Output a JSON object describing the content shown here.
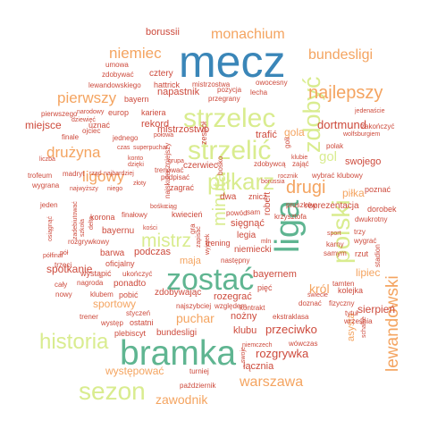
{
  "colors": {
    "orange": "#f4a460",
    "red": "#cd4a3c",
    "green": "#bcd97e",
    "teal": "#5fb591",
    "blue": "#3a86b8",
    "lightgreen": "#d9ec8f",
    "salmon": "#f08060"
  },
  "words": [
    {
      "text": "mecz",
      "color": "blue",
      "vertical": false
    },
    {
      "text": "bramka",
      "color": "teal",
      "vertical": false
    },
    {
      "text": "liga",
      "color": "teal",
      "vertical": true
    },
    {
      "text": "zostać",
      "color": "teal",
      "vertical": false
    },
    {
      "text": "strzelec",
      "color": "lightgreen",
      "vertical": false
    },
    {
      "text": "strzelić",
      "color": "lightgreen",
      "vertical": false
    },
    {
      "text": "polski",
      "color": "lightgreen",
      "vertical": true
    },
    {
      "text": "zdobyć",
      "color": "lightgreen",
      "vertical": true
    },
    {
      "text": "piłkarz",
      "color": "lightgreen",
      "vertical": false
    },
    {
      "text": "sezon",
      "color": "lightgreen",
      "vertical": false
    },
    {
      "text": "historia",
      "color": "lightgreen",
      "vertical": false
    },
    {
      "text": "mistrz",
      "color": "lightgreen",
      "vertical": false
    },
    {
      "text": "minuta",
      "color": "lightgreen",
      "vertical": true
    },
    {
      "text": "gol",
      "color": "lightgreen",
      "vertical": false
    },
    {
      "text": "lewandowski",
      "color": "orange",
      "vertical": true
    },
    {
      "text": "najlepszy",
      "color": "orange",
      "vertical": false
    },
    {
      "text": "drugi",
      "color": "orange",
      "vertical": false
    },
    {
      "text": "bundesligi",
      "color": "orange",
      "vertical": false
    },
    {
      "text": "monachium",
      "color": "orange",
      "vertical": false
    },
    {
      "text": "niemiec",
      "color": "orange",
      "vertical": false
    },
    {
      "text": "pierwszy",
      "color": "orange",
      "vertical": false
    },
    {
      "text": "ligowy",
      "color": "orange",
      "vertical": false
    },
    {
      "text": "drużyna",
      "color": "orange",
      "vertical": false
    },
    {
      "text": "warszawa",
      "color": "orange",
      "vertical": false
    },
    {
      "text": "zawodnik",
      "color": "orange",
      "vertical": false
    },
    {
      "text": "puchar",
      "color": "orange",
      "vertical": false
    },
    {
      "text": "król",
      "color": "orange",
      "vertical": false
    },
    {
      "text": "lipiec",
      "color": "orange",
      "vertical": false
    },
    {
      "text": "piłka",
      "color": "orange",
      "vertical": false
    },
    {
      "text": "sportowy",
      "color": "orange",
      "vertical": false
    },
    {
      "text": "występować",
      "color": "orange",
      "vertical": false
    },
    {
      "text": "maja",
      "color": "orange",
      "vertical": false
    },
    {
      "text": "gola",
      "color": "orange",
      "vertical": false
    },
    {
      "text": "asysta",
      "color": "orange",
      "vertical": true
    },
    {
      "text": "spotkanie",
      "color": "red",
      "vertical": false
    },
    {
      "text": "mistrzostwo",
      "color": "red",
      "vertical": false
    },
    {
      "text": "rozgrywka",
      "color": "red",
      "vertical": false
    },
    {
      "text": "dortmund",
      "color": "red",
      "vertical": false
    },
    {
      "text": "przeciwko",
      "color": "red",
      "vertical": false
    },
    {
      "text": "borussii",
      "color": "red",
      "vertical": false
    },
    {
      "text": "napastnik",
      "color": "red",
      "vertical": false
    },
    {
      "text": "miejsce",
      "color": "red",
      "vertical": false
    },
    {
      "text": "podczas",
      "color": "red",
      "vertical": false
    },
    {
      "text": "łącznia",
      "color": "red",
      "vertical": false
    },
    {
      "text": "klubu",
      "color": "red",
      "vertical": false
    },
    {
      "text": "trafić",
      "color": "red",
      "vertical": false
    },
    {
      "text": "swojego",
      "color": "red",
      "vertical": false
    },
    {
      "text": "bayernem",
      "color": "red",
      "vertical": false
    },
    {
      "text": "rekord",
      "color": "red",
      "vertical": false
    },
    {
      "text": "sierpień",
      "color": "red",
      "vertical": false
    },
    {
      "text": "kolejka",
      "color": "red",
      "vertical": false
    },
    {
      "text": "reprezentacja",
      "color": "red",
      "vertical": false
    },
    {
      "text": "zdobywając",
      "color": "red",
      "vertical": false
    },
    {
      "text": "ponadto",
      "color": "red",
      "vertical": false
    },
    {
      "text": "bayernu",
      "color": "red",
      "vertical": false
    },
    {
      "text": "barwa",
      "color": "red",
      "vertical": false
    },
    {
      "text": "oficjalny",
      "color": "red",
      "vertical": false
    },
    {
      "text": "pięć",
      "color": "red",
      "vertical": false
    },
    {
      "text": "bundesligi",
      "color": "red",
      "vertical": false
    },
    {
      "text": "cztery",
      "color": "red",
      "vertical": false
    },
    {
      "text": "bayern",
      "color": "red",
      "vertical": false
    },
    {
      "text": "hattrick",
      "color": "red",
      "vertical": false
    },
    {
      "text": "europ",
      "color": "red",
      "vertical": false
    },
    {
      "text": "kariera",
      "color": "red",
      "vertical": false
    },
    {
      "text": "uznać",
      "color": "red",
      "vertical": false
    },
    {
      "text": "jednego",
      "color": "red",
      "vertical": false
    },
    {
      "text": "finale",
      "color": "red",
      "vertical": false
    },
    {
      "text": "korona",
      "color": "red",
      "vertical": false
    },
    {
      "text": "czerwiec",
      "color": "red",
      "vertical": false
    },
    {
      "text": "legia",
      "color": "red",
      "vertical": false
    },
    {
      "text": "sięgnąć",
      "color": "red",
      "vertical": false
    },
    {
      "text": "niemiecki",
      "color": "red",
      "vertical": false
    },
    {
      "text": "robert",
      "color": "red",
      "vertical": true
    },
    {
      "text": "zagrać",
      "color": "red",
      "vertical": false
    },
    {
      "text": "kwiecień",
      "color": "red",
      "vertical": false
    },
    {
      "text": "trening",
      "color": "red",
      "vertical": false
    },
    {
      "text": "następny",
      "color": "red",
      "vertical": false
    },
    {
      "text": "rozegrać",
      "color": "red",
      "vertical": false
    },
    {
      "text": "nożny",
      "color": "red",
      "vertical": false
    },
    {
      "text": "kontrakt",
      "color": "red",
      "vertical": false
    },
    {
      "text": "ekstraklasa",
      "color": "red",
      "vertical": false
    },
    {
      "text": "wówczas",
      "color": "red",
      "vertical": false
    },
    {
      "text": "niemczech",
      "color": "red",
      "vertical": false
    },
    {
      "text": "turniej",
      "color": "red",
      "vertical": false
    },
    {
      "text": "październik",
      "color": "red",
      "vertical": false
    },
    {
      "text": "plebiscyt",
      "color": "red",
      "vertical": false
    },
    {
      "text": "ostatni",
      "color": "red",
      "vertical": false
    },
    {
      "text": "występ",
      "color": "red",
      "vertical": false
    },
    {
      "text": "trener",
      "color": "red",
      "vertical": false
    },
    {
      "text": "styczeń",
      "color": "red",
      "vertical": false
    },
    {
      "text": "pobić",
      "color": "red",
      "vertical": false
    },
    {
      "text": "klubem",
      "color": "red",
      "vertical": false
    },
    {
      "text": "nagroda",
      "color": "red",
      "vertical": false
    },
    {
      "text": "nowy",
      "color": "red",
      "vertical": false
    },
    {
      "text": "cały",
      "color": "red",
      "vertical": false
    },
    {
      "text": "wystąpić",
      "color": "red",
      "vertical": false
    },
    {
      "text": "ukończyć",
      "color": "red",
      "vertical": false
    },
    {
      "text": "rozgrywkowy",
      "color": "red",
      "vertical": false
    },
    {
      "text": "finałowy",
      "color": "red",
      "vertical": false
    },
    {
      "text": "jeden",
      "color": "red",
      "vertical": false
    },
    {
      "text": "wygrana",
      "color": "red",
      "vertical": false
    },
    {
      "text": "trofeum",
      "color": "red",
      "vertical": false
    },
    {
      "text": "madryt",
      "color": "red",
      "vertical": false
    },
    {
      "text": "liczba",
      "color": "red",
      "vertical": false
    },
    {
      "text": "pierwszego",
      "color": "red",
      "vertical": false
    },
    {
      "text": "narodowy",
      "color": "red",
      "vertical": false
    },
    {
      "text": "dziewięć",
      "color": "red",
      "vertical": false
    },
    {
      "text": "ojciec",
      "color": "red",
      "vertical": false
    },
    {
      "text": "umowa",
      "color": "red",
      "vertical": false
    },
    {
      "text": "zdobywać",
      "color": "red",
      "vertical": false
    },
    {
      "text": "lewandowskiego",
      "color": "red",
      "vertical": false
    },
    {
      "text": "mistrzostwa",
      "color": "red",
      "vertical": false
    },
    {
      "text": "pozycja",
      "color": "red",
      "vertical": false
    },
    {
      "text": "przegrany",
      "color": "red",
      "vertical": false
    },
    {
      "text": "lecha",
      "color": "red",
      "vertical": false
    },
    {
      "text": "owocesny",
      "color": "red",
      "vertical": false
    },
    {
      "text": "połowa",
      "color": "red",
      "vertical": false
    },
    {
      "text": "czas",
      "color": "red",
      "vertical": false
    },
    {
      "text": "superpuchar",
      "color": "red",
      "vertical": false
    },
    {
      "text": "dzięki",
      "color": "red",
      "vertical": false
    },
    {
      "text": "konto",
      "color": "red",
      "vertical": false
    },
    {
      "text": "rząd",
      "color": "red",
      "vertical": false
    },
    {
      "text": "najbardziej",
      "color": "red",
      "vertical": false
    },
    {
      "text": "złoty",
      "color": "red",
      "vertical": false
    },
    {
      "text": "niego",
      "color": "red",
      "vertical": false
    },
    {
      "text": "najwyższy",
      "color": "red",
      "vertical": false
    },
    {
      "text": "trenować",
      "color": "red",
      "vertical": false
    },
    {
      "text": "grupa",
      "color": "red",
      "vertical": false
    },
    {
      "text": "podpisać",
      "color": "red",
      "vertical": false
    },
    {
      "text": "dwa",
      "color": "red",
      "vertical": false
    },
    {
      "text": "znicz",
      "color": "red",
      "vertical": false
    },
    {
      "text": "powód",
      "color": "red",
      "vertical": false
    },
    {
      "text": "sam",
      "color": "red",
      "vertical": false
    },
    {
      "text": "krzysztofa",
      "color": "red",
      "vertical": false
    },
    {
      "text": "borussia",
      "color": "red",
      "vertical": false
    },
    {
      "text": "rocznik",
      "color": "red",
      "vertical": false
    },
    {
      "text": "zdobywcą",
      "color": "red",
      "vertical": false
    },
    {
      "text": "zająć",
      "color": "red",
      "vertical": false
    },
    {
      "text": "klubie",
      "color": "red",
      "vertical": false
    },
    {
      "text": "polak",
      "color": "red",
      "vertical": false
    },
    {
      "text": "zakończyć",
      "color": "red",
      "vertical": false
    },
    {
      "text": "wybrać",
      "color": "red",
      "vertical": false
    },
    {
      "text": "klubowy",
      "color": "red",
      "vertical": false
    },
    {
      "text": "poznać",
      "color": "red",
      "vertical": false
    },
    {
      "text": "dorobek",
      "color": "red",
      "vertical": false
    },
    {
      "text": "dwukrotny",
      "color": "red",
      "vertical": false
    },
    {
      "text": "trzy",
      "color": "red",
      "vertical": false
    },
    {
      "text": "wygrać",
      "color": "red",
      "vertical": false
    },
    {
      "text": "rzut",
      "color": "red",
      "vertical": false
    },
    {
      "text": "stadion",
      "color": "red",
      "vertical": true
    },
    {
      "text": "karny",
      "color": "red",
      "vertical": false
    },
    {
      "text": "samym",
      "color": "red",
      "vertical": false
    },
    {
      "text": "tamten",
      "color": "red",
      "vertical": false
    },
    {
      "text": "świecie",
      "color": "red",
      "vertical": false
    },
    {
      "text": "doznać",
      "color": "red",
      "vertical": false
    },
    {
      "text": "fizyczny",
      "color": "red",
      "vertical": false
    },
    {
      "text": "tytuł",
      "color": "red",
      "vertical": false
    },
    {
      "text": "września",
      "color": "red",
      "vertical": false
    },
    {
      "text": "schalke",
      "color": "red",
      "vertical": true
    },
    {
      "text": "najszybciej",
      "color": "red",
      "vertical": false
    },
    {
      "text": "względem",
      "color": "red",
      "vertical": false
    },
    {
      "text": "wolfsburgiem",
      "color": "red",
      "vertical": false
    },
    {
      "text": "jedenaście",
      "color": "red",
      "vertical": false
    },
    {
      "text": "pruszków",
      "color": "red",
      "vertical": false
    },
    {
      "text": "sport",
      "color": "red",
      "vertical": false
    },
    {
      "text": "mln",
      "color": "red",
      "vertical": false
    },
    {
      "text": "pół",
      "color": "red",
      "vertical": false
    },
    {
      "text": "półfinał",
      "color": "red",
      "vertical": false
    },
    {
      "text": "trzeci",
      "color": "red",
      "vertical": false
    },
    {
      "text": "bośko",
      "color": "red",
      "vertical": false
    },
    {
      "text": "ciąg",
      "color": "red",
      "vertical": false
    },
    {
      "text": "kości",
      "color": "red",
      "vertical": false
    },
    {
      "text": "gra",
      "color": "red",
      "vertical": true
    },
    {
      "text": "zapisać",
      "color": "red",
      "vertical": true
    },
    {
      "text": "wyjątek",
      "color": "red",
      "vertical": true
    },
    {
      "text": "zespół",
      "color": "red",
      "vertical": true
    },
    {
      "text": "najskuteczniejszy",
      "color": "red",
      "vertical": true
    },
    {
      "text": "zadebiutować",
      "color": "red",
      "vertical": true
    },
    {
      "text": "szkoła",
      "color": "red",
      "vertical": true
    },
    {
      "text": "osiągnąć",
      "color": "red",
      "vertical": true
    },
    {
      "text": "delta",
      "color": "red",
      "vertical": true
    },
    {
      "text": "swoje",
      "color": "red",
      "vertical": true
    },
    {
      "text": "bośko",
      "color": "red",
      "vertical": true
    },
    {
      "text": "goli",
      "color": "red",
      "vertical": true
    },
    {
      "text": "wynik",
      "color": "red",
      "vertical": true
    }
  ]
}
